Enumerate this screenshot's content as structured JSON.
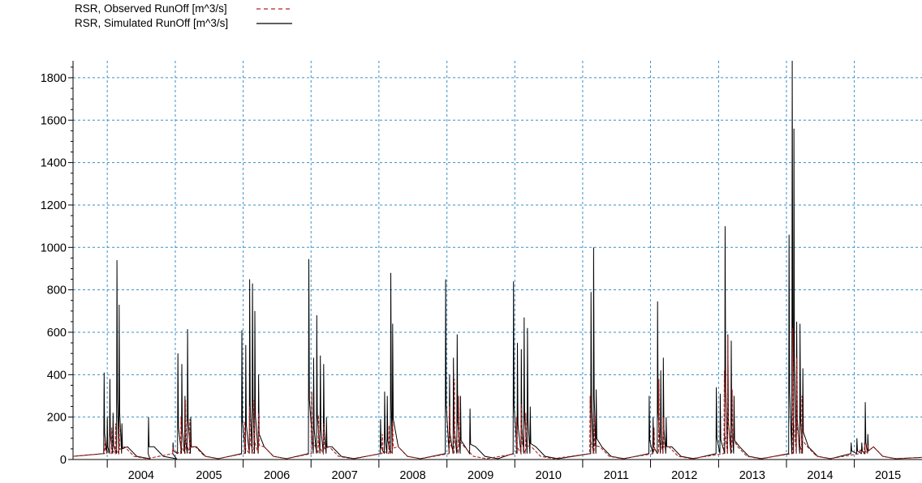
{
  "chart_data": {
    "type": "line",
    "title": "",
    "xlabel": "",
    "ylabel": "",
    "ylim": [
      0,
      1880
    ],
    "xlim": [
      "2003-07-01",
      "2015-12-31"
    ],
    "y_ticks": [
      0,
      200,
      400,
      600,
      800,
      1000,
      1200,
      1400,
      1600,
      1800
    ],
    "x_tick_labels": [
      "2004",
      "2005",
      "2006",
      "2007",
      "2008",
      "2009",
      "2010",
      "2011",
      "2012",
      "2013",
      "2014",
      "2015"
    ],
    "grid": true,
    "legend_position": "top-left",
    "series": [
      {
        "name": "RSR, Observed RunOff [m^3/s]",
        "style": "dashed",
        "color": "#b22222",
        "peaks": [
          {
            "date": "2003-12-20",
            "value": 95
          },
          {
            "date": "2004-01-25",
            "value": 150
          },
          {
            "date": "2004-02-15",
            "value": 170
          },
          {
            "date": "2004-03-05",
            "value": 160
          },
          {
            "date": "2004-12-20",
            "value": 60
          },
          {
            "date": "2005-02-01",
            "value": 200
          },
          {
            "date": "2005-02-25",
            "value": 280
          },
          {
            "date": "2005-03-20",
            "value": 190
          },
          {
            "date": "2006-01-10",
            "value": 180
          },
          {
            "date": "2006-02-05",
            "value": 250
          },
          {
            "date": "2006-03-01",
            "value": 280
          },
          {
            "date": "2006-03-25",
            "value": 220
          },
          {
            "date": "2007-01-05",
            "value": 320
          },
          {
            "date": "2007-02-10",
            "value": 210
          },
          {
            "date": "2007-03-10",
            "value": 170
          },
          {
            "date": "2008-01-20",
            "value": 120
          },
          {
            "date": "2008-02-25",
            "value": 160
          },
          {
            "date": "2008-03-15",
            "value": 180
          },
          {
            "date": "2009-01-15",
            "value": 250
          },
          {
            "date": "2009-02-10",
            "value": 380
          },
          {
            "date": "2009-03-05",
            "value": 300
          },
          {
            "date": "2010-01-10",
            "value": 200
          },
          {
            "date": "2010-02-05",
            "value": 260
          },
          {
            "date": "2010-03-01",
            "value": 220
          },
          {
            "date": "2011-02-10",
            "value": 300
          },
          {
            "date": "2011-03-05",
            "value": 220
          },
          {
            "date": "2012-01-20",
            "value": 150
          },
          {
            "date": "2012-02-15",
            "value": 380
          },
          {
            "date": "2012-03-10",
            "value": 200
          },
          {
            "date": "2013-02-01",
            "value": 420
          },
          {
            "date": "2013-02-20",
            "value": 580
          },
          {
            "date": "2013-03-15",
            "value": 330
          },
          {
            "date": "2014-02-05",
            "value": 620
          },
          {
            "date": "2014-02-25",
            "value": 480
          },
          {
            "date": "2014-03-25",
            "value": 300
          },
          {
            "date": "2015-02-01",
            "value": 50
          },
          {
            "date": "2015-02-25",
            "value": 80
          },
          {
            "date": "2015-03-15",
            "value": 70
          }
        ]
      },
      {
        "name": "RSR, Simulated RunOff [m^3/s]",
        "style": "solid",
        "color": "#000000",
        "peaks": [
          {
            "date": "2003-12-15",
            "value": 410
          },
          {
            "date": "2004-01-01",
            "value": 200
          },
          {
            "date": "2004-01-15",
            "value": 380
          },
          {
            "date": "2004-02-01",
            "value": 220
          },
          {
            "date": "2004-02-22",
            "value": 940
          },
          {
            "date": "2004-03-05",
            "value": 730
          },
          {
            "date": "2004-03-20",
            "value": 170
          },
          {
            "date": "2004-08-10",
            "value": 200
          },
          {
            "date": "2004-12-20",
            "value": 80
          },
          {
            "date": "2005-01-15",
            "value": 500
          },
          {
            "date": "2005-02-05",
            "value": 450
          },
          {
            "date": "2005-02-22",
            "value": 300
          },
          {
            "date": "2005-03-08",
            "value": 615
          },
          {
            "date": "2005-03-25",
            "value": 200
          },
          {
            "date": "2005-12-25",
            "value": 610
          },
          {
            "date": "2006-01-15",
            "value": 540
          },
          {
            "date": "2006-02-05",
            "value": 850
          },
          {
            "date": "2006-02-20",
            "value": 830
          },
          {
            "date": "2006-03-05",
            "value": 700
          },
          {
            "date": "2006-03-25",
            "value": 400
          },
          {
            "date": "2006-12-20",
            "value": 945
          },
          {
            "date": "2007-01-15",
            "value": 480
          },
          {
            "date": "2007-02-01",
            "value": 680
          },
          {
            "date": "2007-02-20",
            "value": 490
          },
          {
            "date": "2007-03-10",
            "value": 450
          },
          {
            "date": "2007-03-25",
            "value": 200
          },
          {
            "date": "2008-01-10",
            "value": 190
          },
          {
            "date": "2008-02-01",
            "value": 320
          },
          {
            "date": "2008-02-15",
            "value": 300
          },
          {
            "date": "2008-03-05",
            "value": 880
          },
          {
            "date": "2008-03-15",
            "value": 640
          },
          {
            "date": "2008-12-25",
            "value": 850
          },
          {
            "date": "2009-01-15",
            "value": 400
          },
          {
            "date": "2009-02-05",
            "value": 480
          },
          {
            "date": "2009-02-25",
            "value": 590
          },
          {
            "date": "2009-03-15",
            "value": 300
          },
          {
            "date": "2009-05-05",
            "value": 240
          },
          {
            "date": "2009-12-25",
            "value": 840
          },
          {
            "date": "2010-01-15",
            "value": 550
          },
          {
            "date": "2010-02-05",
            "value": 520
          },
          {
            "date": "2010-02-20",
            "value": 670
          },
          {
            "date": "2010-03-10",
            "value": 620
          },
          {
            "date": "2010-03-25",
            "value": 250
          },
          {
            "date": "2011-02-15",
            "value": 790
          },
          {
            "date": "2011-03-01",
            "value": 1000
          },
          {
            "date": "2011-03-15",
            "value": 330
          },
          {
            "date": "2011-12-25",
            "value": 300
          },
          {
            "date": "2012-01-15",
            "value": 200
          },
          {
            "date": "2012-02-08",
            "value": 745
          },
          {
            "date": "2012-02-25",
            "value": 420
          },
          {
            "date": "2012-03-10",
            "value": 480
          },
          {
            "date": "2012-03-25",
            "value": 200
          },
          {
            "date": "2012-12-20",
            "value": 340
          },
          {
            "date": "2013-01-10",
            "value": 310
          },
          {
            "date": "2013-02-05",
            "value": 1100
          },
          {
            "date": "2013-02-20",
            "value": 590
          },
          {
            "date": "2013-03-10",
            "value": 560
          },
          {
            "date": "2013-03-25",
            "value": 300
          },
          {
            "date": "2014-01-15",
            "value": 1060
          },
          {
            "date": "2014-02-01",
            "value": 1880
          },
          {
            "date": "2014-02-10",
            "value": 1560
          },
          {
            "date": "2014-02-25",
            "value": 650
          },
          {
            "date": "2014-03-15",
            "value": 640
          },
          {
            "date": "2014-03-30",
            "value": 430
          },
          {
            "date": "2014-12-15",
            "value": 80
          },
          {
            "date": "2015-01-15",
            "value": 100
          },
          {
            "date": "2015-02-10",
            "value": 80
          },
          {
            "date": "2015-03-01",
            "value": 270
          },
          {
            "date": "2015-03-15",
            "value": 120
          }
        ]
      }
    ]
  }
}
